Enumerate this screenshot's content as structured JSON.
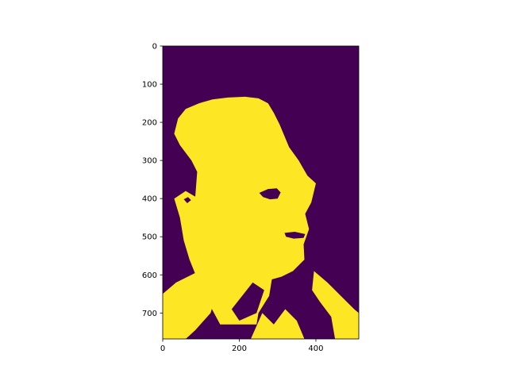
{
  "chart_data": {
    "type": "heatmap",
    "title": "",
    "xlabel": "",
    "ylabel": "",
    "image_width": 512,
    "image_height": 768,
    "xlim": [
      0,
      512
    ],
    "ylim": [
      768,
      0
    ],
    "x_ticks": [
      {
        "value": 0,
        "label": "0"
      },
      {
        "value": 200,
        "label": "200"
      },
      {
        "value": 400,
        "label": "400"
      }
    ],
    "y_ticks": [
      {
        "value": 0,
        "label": "0"
      },
      {
        "value": 100,
        "label": "100"
      },
      {
        "value": 200,
        "label": "200"
      },
      {
        "value": 300,
        "label": "300"
      },
      {
        "value": 400,
        "label": "400"
      },
      {
        "value": 500,
        "label": "500"
      },
      {
        "value": 600,
        "label": "600"
      },
      {
        "value": 700,
        "label": "700"
      }
    ],
    "grid": false,
    "legend": "none",
    "colormap": "viridis",
    "classes": [
      {
        "value": 0,
        "color": "#440154"
      },
      {
        "value": 1,
        "color": "#fde725"
      }
    ],
    "regions": [
      {
        "value": 1,
        "polygon": [
          [
            90,
            330
          ],
          [
            75,
            300
          ],
          [
            45,
            260
          ],
          [
            30,
            230
          ],
          [
            40,
            190
          ],
          [
            60,
            165
          ],
          [
            95,
            150
          ],
          [
            130,
            140
          ],
          [
            170,
            135
          ],
          [
            215,
            133
          ],
          [
            250,
            137
          ],
          [
            275,
            150
          ],
          [
            290,
            175
          ],
          [
            305,
            205
          ],
          [
            330,
            265
          ],
          [
            355,
            300
          ],
          [
            378,
            340
          ],
          [
            400,
            360
          ],
          [
            388,
            410
          ],
          [
            372,
            440
          ],
          [
            382,
            480
          ],
          [
            368,
            520
          ],
          [
            370,
            560
          ],
          [
            340,
            590
          ],
          [
            310,
            605
          ],
          [
            285,
            612
          ],
          [
            278,
            655
          ],
          [
            250,
            700
          ],
          [
            245,
            730
          ],
          [
            150,
            730
          ],
          [
            110,
            655
          ],
          [
            90,
            610
          ],
          [
            70,
            560
          ],
          [
            55,
            510
          ],
          [
            45,
            450
          ],
          [
            30,
            400
          ],
          [
            60,
            380
          ],
          [
            85,
            395
          ]
        ]
      },
      {
        "value": 1,
        "polygon": [
          [
            0,
            650
          ],
          [
            35,
            620
          ],
          [
            85,
            595
          ],
          [
            110,
            590
          ],
          [
            140,
            650
          ],
          [
            125,
            700
          ],
          [
            85,
            745
          ],
          [
            60,
            768
          ],
          [
            0,
            768
          ]
        ]
      },
      {
        "value": 1,
        "polygon": [
          [
            395,
            590
          ],
          [
            430,
            620
          ],
          [
            470,
            660
          ],
          [
            500,
            690
          ],
          [
            512,
            700
          ],
          [
            512,
            768
          ],
          [
            450,
            768
          ],
          [
            440,
            710
          ],
          [
            410,
            670
          ],
          [
            390,
            640
          ]
        ]
      },
      {
        "value": 1,
        "polygon": [
          [
            230,
            768
          ],
          [
            260,
            700
          ],
          [
            290,
            730
          ],
          [
            320,
            690
          ],
          [
            350,
            720
          ],
          [
            370,
            768
          ]
        ]
      },
      {
        "value": 0,
        "polygon": [
          [
            252,
            385
          ],
          [
            275,
            375
          ],
          [
            298,
            373
          ],
          [
            308,
            384
          ],
          [
            300,
            400
          ],
          [
            280,
            402
          ],
          [
            262,
            396
          ]
        ]
      },
      {
        "value": 0,
        "polygon": [
          [
            318,
            490
          ],
          [
            345,
            487
          ],
          [
            372,
            493
          ],
          [
            368,
            503
          ],
          [
            342,
            505
          ],
          [
            322,
            500
          ]
        ]
      },
      {
        "value": 0,
        "polygon": [
          [
            180,
            690
          ],
          [
            235,
            620
          ],
          [
            265,
            640
          ],
          [
            245,
            700
          ],
          [
            200,
            720
          ]
        ]
      },
      {
        "value": 0,
        "polygon": [
          [
            55,
            402
          ],
          [
            66,
            396
          ],
          [
            74,
            404
          ],
          [
            64,
            412
          ]
        ]
      }
    ]
  }
}
